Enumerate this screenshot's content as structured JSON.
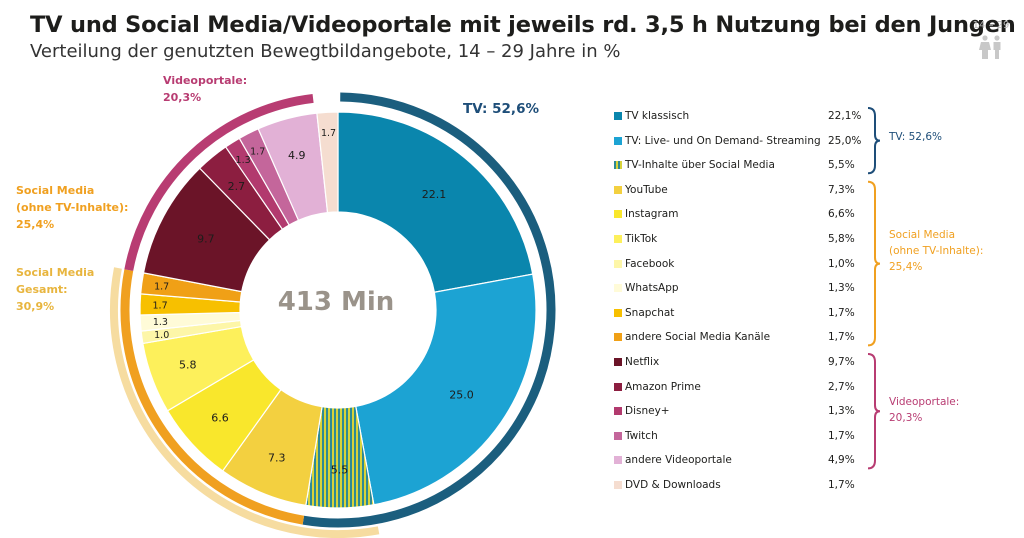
{
  "title": "TV und Social Media/Videoportale mit jeweils rd. 3,5 h Nutzung bei den Jungen",
  "subtitle": "Verteilung der genutzten Bewegtbildangebote, 14 – 29 Jahre in %",
  "age_badge": "14 – 29",
  "center_label": "413 Min",
  "chart_data": {
    "type": "pie",
    "variant": "donut",
    "unit": "%",
    "categories": [
      "TV klassisch",
      "TV: Live- und On Demand- Streaming",
      "TV-Inhalte über Social Media",
      "YouTube",
      "Instagram",
      "TikTok",
      "Facebook",
      "WhatsApp",
      "Snapchat",
      "andere Social Media Kanäle",
      "Netflix",
      "Amazon Prime",
      "Disney+",
      "Twitch",
      "andere Videoportale",
      "DVD & Downloads"
    ],
    "values": [
      22.1,
      25.0,
      5.5,
      7.3,
      6.6,
      5.8,
      1.0,
      1.3,
      1.7,
      1.7,
      9.7,
      2.7,
      1.3,
      1.7,
      4.9,
      1.7
    ],
    "slice_labels": [
      "22.1",
      "25.0",
      "5.5",
      "7.3",
      "6.6",
      "5.8",
      "1.0",
      "1.3",
      "1.7",
      "1.7",
      "9.7",
      "2.7",
      "1.3",
      "1.7",
      "4.9",
      "1.7"
    ],
    "legend_values": [
      "22,1%",
      "25,0%",
      "5,5%",
      "7,3%",
      "6,6%",
      "5,8%",
      "1,0%",
      "1,3%",
      "1,7%",
      "1,7%",
      "9,7%",
      "2,7%",
      "1,3%",
      "1,7%",
      "4,9%",
      "1,7%"
    ],
    "colors": [
      "#0a86ad",
      "#1ca3d3",
      "#2d8a95",
      "#f3d040",
      "#f9e72c",
      "#fdf05b",
      "#fdf6a8",
      "#fffbd8",
      "#f7c000",
      "#f0a016",
      "#6b1428",
      "#8c1e40",
      "#b23a6e",
      "#c4669b",
      "#e2b1d6",
      "#f5ddd0"
    ],
    "legend_position": "right",
    "groups": [
      {
        "name": "TV: 52,6%",
        "short": "TV: 52,6%",
        "start": 0,
        "end": 2,
        "color": "#1e4e79"
      },
      {
        "name": "Social Media (ohne TV-Inhalte): 25,4%",
        "label": "Social Media\n(ohne TV-Inhalte):\n25,4%",
        "start": 3,
        "end": 9,
        "color": "#f0a020"
      },
      {
        "name": "Videoportale: 20,3%",
        "label": "Videoportale:\n20,3%",
        "start": 10,
        "end": 14,
        "color": "#b83c72"
      },
      {
        "name": "Social Media Gesamt: 30,9%",
        "label": "Social Media\nGesamt:\n30,9%",
        "start": 2,
        "end": 9,
        "color": "#f5c84a"
      }
    ]
  }
}
